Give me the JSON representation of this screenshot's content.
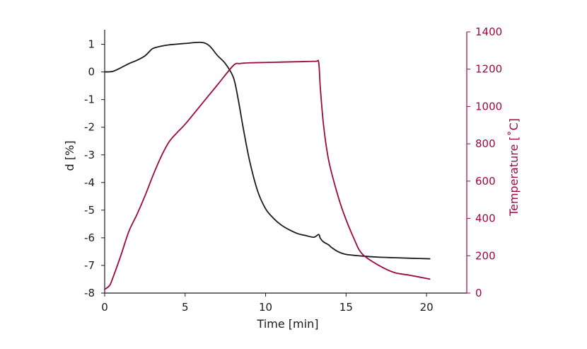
{
  "chart_data": {
    "type": "line",
    "title": "",
    "xlabel": "Time [min]",
    "ylabel_left": "d [%]",
    "ylabel_right": "Temperature [˚C]",
    "xlim": [
      0,
      22.5
    ],
    "ylim_left": [
      -8,
      1.45
    ],
    "ylim_right": [
      0,
      1400
    ],
    "x_ticks": [
      0,
      5,
      10,
      15,
      20
    ],
    "y_left_ticks": [
      1,
      0,
      -1,
      -2,
      -3,
      -4,
      -5,
      -6,
      -7,
      -8
    ],
    "y_right_ticks": [
      1400,
      1200,
      1000,
      800,
      600,
      400,
      200,
      0
    ],
    "grid": false,
    "colors": {
      "d": "#1a1a1a",
      "temperature": "#9b0a3c"
    },
    "series": [
      {
        "axis": "left",
        "x": [
          0,
          0.5,
          1,
          1.5,
          2,
          2.5,
          2.8,
          3,
          3.5,
          4,
          5,
          6,
          6.5,
          7,
          7.5,
          8,
          8.3,
          8.6,
          9,
          9.5,
          10,
          10.5,
          11,
          11.5,
          12,
          12.5,
          13,
          13.3,
          13.4,
          13.6,
          13.9,
          14.1,
          14.5,
          15,
          16,
          17,
          18,
          19,
          20.2
        ],
        "y": [
          0,
          0.02,
          0.15,
          0.3,
          0.42,
          0.58,
          0.75,
          0.85,
          0.93,
          0.98,
          1.03,
          1.07,
          0.95,
          0.6,
          0.3,
          -0.2,
          -1.0,
          -2.0,
          -3.2,
          -4.3,
          -4.95,
          -5.3,
          -5.55,
          -5.72,
          -5.85,
          -5.92,
          -5.98,
          -5.88,
          -6.02,
          -6.15,
          -6.25,
          -6.35,
          -6.5,
          -6.6,
          -6.66,
          -6.7,
          -6.72,
          -6.74,
          -6.76
        ]
      },
      {
        "axis": "right",
        "x": [
          0,
          0.3,
          0.5,
          1,
          1.5,
          2,
          2.5,
          3,
          3.5,
          4,
          4.5,
          5,
          6,
          7,
          8,
          8.4,
          8.6,
          9,
          10,
          11,
          12,
          13.1,
          13.3,
          13.4,
          13.6,
          13.9,
          14.3,
          14.8,
          15.5,
          16,
          17,
          18,
          19,
          20.2
        ],
        "y": [
          20,
          40,
          80,
          200,
          330,
          420,
          520,
          630,
          730,
          810,
          860,
          905,
          1010,
          1115,
          1220,
          1230,
          1232,
          1234,
          1236,
          1238,
          1240,
          1242,
          1235,
          1100,
          900,
          720,
          580,
          440,
          290,
          210,
          150,
          110,
          95,
          75
        ]
      }
    ]
  }
}
